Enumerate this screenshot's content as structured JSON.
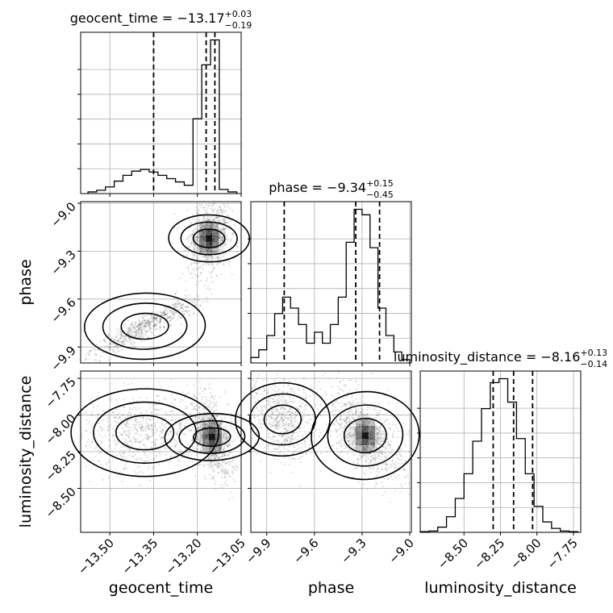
{
  "chart_data": {
    "type": "corner",
    "parameters": [
      "geocent_time",
      "phase",
      "luminosity_distance"
    ],
    "titles": {
      "geocent_time": {
        "name": "geocent_time",
        "median": "−13.17",
        "plus": "+0.03",
        "minus": "−0.19"
      },
      "phase": {
        "name": "phase",
        "median": "−9.34",
        "plus": "+0.15",
        "minus": "−0.45"
      },
      "luminosity_distance": {
        "name": "luminosity_distance",
        "median": "−8.16",
        "plus": "+0.13",
        "minus": "−0.14"
      }
    },
    "axes": {
      "geocent_time": {
        "label": "geocent_time",
        "range": [
          -13.6,
          -13.05
        ],
        "ticks": [
          -13.5,
          -13.35,
          -13.2,
          -13.05
        ],
        "tick_labels": [
          "−13.50",
          "−13.35",
          "−13.20",
          "−13.05"
        ]
      },
      "phase": {
        "label": "phase",
        "range": [
          -10.0,
          -8.99
        ],
        "ticks": [
          -9.9,
          -9.6,
          -9.3,
          -9.0
        ],
        "tick_labels": [
          "−9.9",
          "−9.6",
          "−9.3",
          "−9.0"
        ]
      },
      "luminosity_distance": {
        "label": "luminosity_distance",
        "range": [
          -8.8,
          -7.7
        ],
        "ticks": [
          -8.5,
          -8.25,
          -8.0,
          -7.75
        ],
        "tick_labels": [
          "−8.50",
          "−8.25",
          "−8.00",
          "−7.75"
        ]
      }
    },
    "histograms": {
      "geocent_time": {
        "bin_edges": [
          -13.575,
          -13.545,
          -13.515,
          -13.485,
          -13.455,
          -13.425,
          -13.395,
          -13.365,
          -13.335,
          -13.305,
          -13.275,
          -13.245,
          -13.215,
          -13.185,
          -13.155,
          -13.125,
          -13.095,
          -13.065
        ],
        "counts": [
          2,
          4,
          8,
          15,
          22,
          27,
          29,
          26,
          22,
          18,
          14,
          10,
          90,
          155,
          185,
          5,
          2
        ],
        "quantiles": [
          -13.35,
          -13.17,
          -13.14
        ]
      },
      "phase": {
        "bin_edges": [
          -10.0,
          -9.95,
          -9.9,
          -9.85,
          -9.8,
          -9.75,
          -9.7,
          -9.65,
          -9.6,
          -9.55,
          -9.5,
          -9.45,
          -9.4,
          -9.35,
          -9.3,
          -9.25,
          -9.2,
          -9.15,
          -9.1,
          -9.05,
          -9.0
        ],
        "counts": [
          5,
          12,
          25,
          45,
          60,
          50,
          35,
          18,
          28,
          18,
          35,
          60,
          110,
          140,
          135,
          105,
          50,
          25,
          10,
          3
        ],
        "quantiles": [
          -9.79,
          -9.34,
          -9.19
        ]
      },
      "luminosity_distance": {
        "bin_edges": [
          -8.8,
          -8.74,
          -8.68,
          -8.62,
          -8.56,
          -8.5,
          -8.44,
          -8.38,
          -8.32,
          -8.26,
          -8.2,
          -8.14,
          -8.08,
          -8.02,
          -7.96,
          -7.9,
          -7.84,
          -7.78,
          -7.72
        ],
        "counts": [
          0.5,
          1,
          4,
          12,
          26,
          45,
          70,
          95,
          115,
          118,
          100,
          72,
          45,
          20,
          8,
          3,
          1,
          0.5
        ],
        "quantiles": [
          -8.3,
          -8.16,
          -8.03
        ]
      }
    },
    "grid": true
  }
}
